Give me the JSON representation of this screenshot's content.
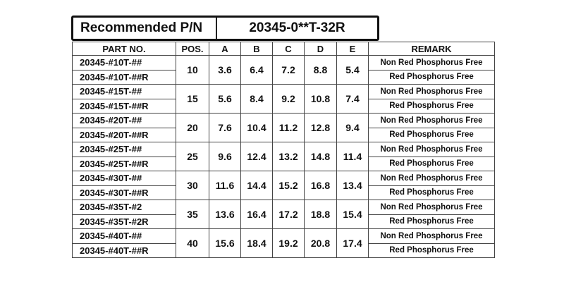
{
  "recommended": {
    "label": "Recommended P/N",
    "value": "20345-0**T-32R"
  },
  "table": {
    "headers": [
      "PART NO.",
      "POS.",
      "A",
      "B",
      "C",
      "D",
      "E",
      "REMARK"
    ],
    "groups": [
      {
        "pos": "10",
        "a": "3.6",
        "b": "6.4",
        "c": "7.2",
        "d": "8.8",
        "e": "5.4",
        "rows": [
          {
            "part": "20345-#10T-##",
            "remark": "Non Red Phosphorus Free"
          },
          {
            "part": "20345-#10T-##R",
            "remark": "Red Phosphorus Free"
          }
        ]
      },
      {
        "pos": "15",
        "a": "5.6",
        "b": "8.4",
        "c": "9.2",
        "d": "10.8",
        "e": "7.4",
        "rows": [
          {
            "part": "20345-#15T-##",
            "remark": "Non Red Phosphorus Free"
          },
          {
            "part": "20345-#15T-##R",
            "remark": "Red Phosphorus Free"
          }
        ]
      },
      {
        "pos": "20",
        "a": "7.6",
        "b": "10.4",
        "c": "11.2",
        "d": "12.8",
        "e": "9.4",
        "rows": [
          {
            "part": "20345-#20T-##",
            "remark": "Non Red Phosphorus Free"
          },
          {
            "part": "20345-#20T-##R",
            "remark": "Red Phosphorus Free"
          }
        ]
      },
      {
        "pos": "25",
        "a": "9.6",
        "b": "12.4",
        "c": "13.2",
        "d": "14.8",
        "e": "11.4",
        "rows": [
          {
            "part": "20345-#25T-##",
            "remark": "Non Red Phosphorus Free"
          },
          {
            "part": "20345-#25T-##R",
            "remark": "Red Phosphorus Free"
          }
        ]
      },
      {
        "pos": "30",
        "a": "11.6",
        "b": "14.4",
        "c": "15.2",
        "d": "16.8",
        "e": "13.4",
        "rows": [
          {
            "part": "20345-#30T-##",
            "remark": "Non Red Phosphorus Free"
          },
          {
            "part": "20345-#30T-##R",
            "remark": "Red Phosphorus Free"
          }
        ]
      },
      {
        "pos": "35",
        "a": "13.6",
        "b": "16.4",
        "c": "17.2",
        "d": "18.8",
        "e": "15.4",
        "rows": [
          {
            "part": "20345-#35T-#2",
            "remark": "Non Red Phosphorus Free"
          },
          {
            "part": "20345-#35T-#2R",
            "remark": "Red Phosphorus Free"
          }
        ]
      },
      {
        "pos": "40",
        "a": "15.6",
        "b": "18.4",
        "c": "19.2",
        "d": "20.8",
        "e": "17.4",
        "rows": [
          {
            "part": "20345-#40T-##",
            "remark": "Non Red Phosphorus Free"
          },
          {
            "part": "20345-#40T-##R",
            "remark": "Red Phosphorus Free"
          }
        ]
      }
    ]
  }
}
